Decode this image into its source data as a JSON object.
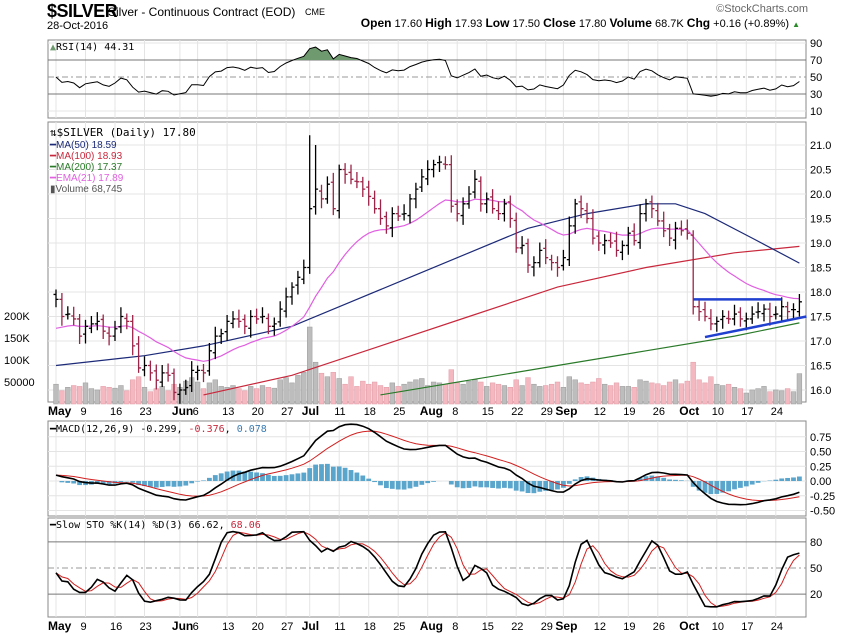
{
  "header": {
    "symbol": "$SILVER",
    "name": "Silver - Continuous Contract (EOD)",
    "exchange": "CME",
    "date": "28-Oct-2016",
    "logo": "©StockCharts.com",
    "open_label": "Open",
    "open": "17.60",
    "high_label": "High",
    "high": "17.93",
    "low_label": "Low",
    "low": "17.50",
    "close_label": "Close",
    "close": "17.80",
    "volume_label": "Volume",
    "volume": "68.7K",
    "chg_label": "Chg",
    "chg": "+0.16 (+0.89%)",
    "chg_icon": "up-triangle"
  },
  "legends": {
    "rsi": "RSI(14) 44.31",
    "price": "$SILVER (Daily) 17.80",
    "ma50": "MA(50) 18.59",
    "ma100": "MA(100) 18.93",
    "ma200": "MA(200) 17.37",
    "ema21": "EMA(21) 17.89",
    "volume": "Volume 68,745",
    "macd_name": "MACD(12,26,9)",
    "macd": "-0.299",
    "macd_signal": "-0.376",
    "macd_hist": "0.078",
    "sto_name": "Slow STO %K(14) %D(3)",
    "sto_k": "66.62",
    "sto_d": "68.06"
  },
  "colors": {
    "up": "#000000",
    "down": "#9b2448",
    "ma50": "#1c2a78",
    "ma100": "#c8283c",
    "ma200": "#2a7a2a",
    "ema21": "#e060e0",
    "vol_up": "#bdbdbd",
    "vol_down": "#f4b8c0",
    "macd_hist": "#5aa5cc",
    "trend": "#2040d0",
    "rsi_fill_hi": "#6f9a6f",
    "rsi_fill_lo": "#888888"
  },
  "chart_data": {
    "type": "ohlc",
    "title": "$SILVER Silver - Continuous Contract (EOD)",
    "x_labels": [
      {
        "t": "May",
        "i": 0,
        "m": true
      },
      {
        "t": "9",
        "i": 5
      },
      {
        "t": "16",
        "i": 10
      },
      {
        "t": "23",
        "i": 15
      },
      {
        "t": "Jun",
        "i": 21,
        "m": true
      },
      {
        "t": "6",
        "i": 24
      },
      {
        "t": "13",
        "i": 29
      },
      {
        "t": "20",
        "i": 34
      },
      {
        "t": "27",
        "i": 39
      },
      {
        "t": "Jul",
        "i": 43,
        "m": true
      },
      {
        "t": "11",
        "i": 48
      },
      {
        "t": "18",
        "i": 53
      },
      {
        "t": "25",
        "i": 58
      },
      {
        "t": "Aug",
        "i": 63,
        "m": true
      },
      {
        "t": "8",
        "i": 68
      },
      {
        "t": "15",
        "i": 73
      },
      {
        "t": "22",
        "i": 78
      },
      {
        "t": "29",
        "i": 83
      },
      {
        "t": "Sep",
        "i": 86,
        "m": true
      },
      {
        "t": "12",
        "i": 92
      },
      {
        "t": "19",
        "i": 97
      },
      {
        "t": "26",
        "i": 102
      },
      {
        "t": "Oct",
        "i": 107,
        "m": true
      },
      {
        "t": "10",
        "i": 112
      },
      {
        "t": "17",
        "i": 117
      },
      {
        "t": "24",
        "i": 122
      }
    ],
    "close": [
      17.85,
      17.5,
      17.55,
      17.45,
      17.1,
      17.3,
      17.35,
      17.4,
      17.2,
      17.1,
      17.25,
      17.5,
      17.4,
      16.9,
      16.45,
      16.5,
      16.35,
      16.2,
      16.35,
      16.3,
      15.95,
      16.0,
      16.05,
      16.4,
      16.4,
      16.35,
      16.8,
      17.1,
      17.15,
      17.4,
      17.45,
      17.4,
      17.3,
      17.5,
      17.45,
      17.5,
      17.3,
      17.35,
      17.65,
      17.9,
      18.1,
      18.3,
      18.5,
      19.7,
      20.1,
      19.9,
      20.2,
      19.7,
      20.5,
      20.4,
      20.3,
      20.25,
      20.1,
      19.95,
      19.7,
      19.5,
      19.35,
      19.6,
      19.55,
      19.6,
      19.9,
      20.1,
      20.35,
      20.5,
      20.6,
      20.65,
      20.6,
      19.75,
      19.6,
      19.8,
      20.0,
      20.3,
      19.8,
      19.9,
      19.7,
      19.6,
      19.8,
      19.5,
      18.9,
      18.95,
      18.55,
      18.6,
      18.85,
      18.7,
      18.6,
      18.5,
      18.7,
      19.35,
      19.8,
      19.7,
      19.5,
      19.1,
      19.0,
      19.05,
      19.0,
      18.85,
      18.95,
      19.2,
      19.05,
      19.6,
      19.8,
      19.7,
      19.45,
      19.25,
      19.1,
      19.3,
      19.25,
      19.2,
      17.7,
      17.6,
      17.5,
      17.35,
      17.4,
      17.5,
      17.45,
      17.55,
      17.45,
      17.45,
      17.55,
      17.6,
      17.65,
      17.5,
      17.55,
      17.7,
      17.6,
      17.64,
      17.8
    ],
    "volume_k": [
      45,
      30,
      38,
      42,
      40,
      48,
      35,
      32,
      40,
      38,
      36,
      42,
      30,
      55,
      62,
      38,
      28,
      35,
      40,
      30,
      45,
      38,
      52,
      60,
      50,
      35,
      48,
      55,
      40,
      38,
      42,
      35,
      30,
      40,
      35,
      42,
      38,
      36,
      55,
      60,
      48,
      65,
      72,
      175,
      95,
      70,
      62,
      72,
      58,
      45,
      62,
      40,
      52,
      45,
      50,
      42,
      38,
      48,
      40,
      45,
      50,
      55,
      58,
      42,
      50,
      48,
      45,
      78,
      48,
      45,
      52,
      55,
      50,
      40,
      48,
      45,
      42,
      38,
      55,
      42,
      60,
      45,
      40,
      42,
      45,
      50,
      38,
      62,
      55,
      48,
      45,
      50,
      58,
      45,
      42,
      48,
      40,
      40,
      38,
      55,
      52,
      48,
      46,
      42,
      50,
      55,
      46,
      52,
      95,
      55,
      48,
      62,
      45,
      42,
      45,
      38,
      35,
      25,
      32,
      35,
      40,
      28,
      32,
      30,
      35,
      28,
      69
    ],
    "ma50": [
      [
        0,
        16.5
      ],
      [
        15,
        16.7
      ],
      [
        25,
        16.9
      ],
      [
        40,
        17.3
      ],
      [
        50,
        17.8
      ],
      [
        60,
        18.3
      ],
      [
        70,
        18.8
      ],
      [
        80,
        19.3
      ],
      [
        90,
        19.6
      ],
      [
        100,
        19.8
      ],
      [
        105,
        19.8
      ],
      [
        110,
        19.6
      ],
      [
        118,
        19.1
      ],
      [
        126,
        18.59
      ]
    ],
    "ma100": [
      [
        25,
        15.9
      ],
      [
        40,
        16.3
      ],
      [
        55,
        16.9
      ],
      [
        70,
        17.5
      ],
      [
        85,
        18.1
      ],
      [
        100,
        18.5
      ],
      [
        115,
        18.8
      ],
      [
        126,
        18.93
      ]
    ],
    "ma200": [
      [
        55,
        15.9
      ],
      [
        70,
        16.2
      ],
      [
        85,
        16.5
      ],
      [
        100,
        16.8
      ],
      [
        115,
        17.1
      ],
      [
        126,
        17.37
      ]
    ],
    "ema21_seed": 17.2,
    "trendlines": [
      {
        "from": [
          108,
          17.85
        ],
        "to": [
          123,
          17.85
        ]
      },
      {
        "from": [
          110,
          17.08
        ],
        "to": [
          127.2,
          17.5
        ]
      }
    ],
    "price_ticks": [
      16.0,
      16.5,
      17.0,
      17.5,
      18.0,
      18.5,
      19.0,
      19.5,
      20.0,
      20.5,
      21.0
    ],
    "volume_ticks": [
      {
        "v": 50,
        "t": "50000"
      },
      {
        "v": 100,
        "t": "100K"
      },
      {
        "v": 150,
        "t": "150K"
      },
      {
        "v": 200,
        "t": "200K"
      }
    ],
    "rsi_ticks": [
      90,
      70,
      50,
      30,
      10
    ],
    "macd_ticks": [
      "0.75",
      "0.50",
      "0.25",
      "0.00",
      "-0.25",
      "-0.50"
    ],
    "sto_ticks": [
      80,
      50,
      20
    ]
  }
}
